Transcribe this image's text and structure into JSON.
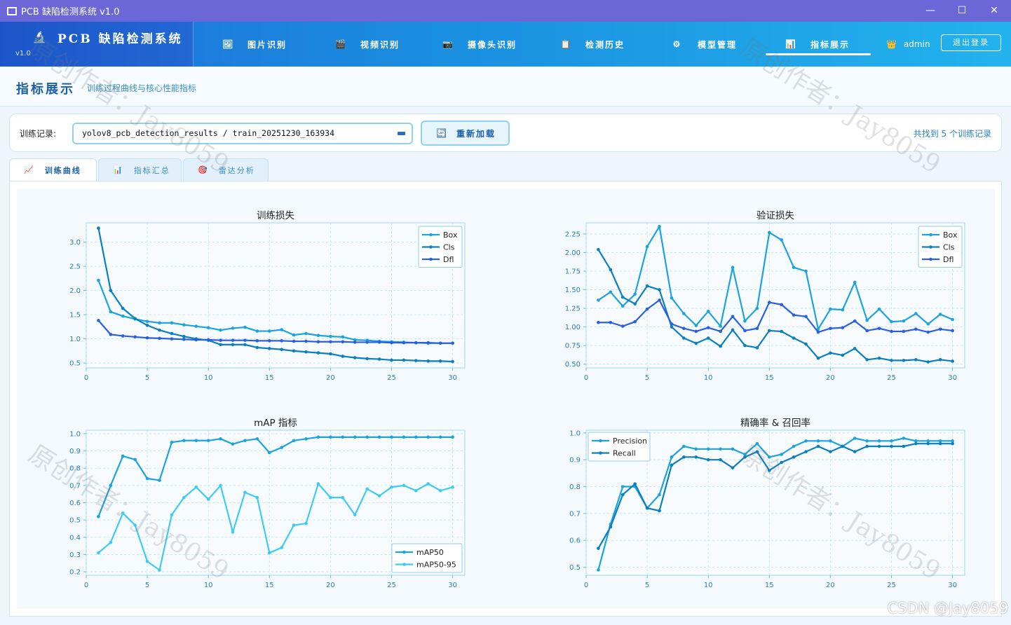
{
  "window": {
    "title": "PCB 缺陷检测系统 v1.0",
    "controls": [
      "—",
      "☐",
      "✕"
    ]
  },
  "brand": {
    "name": "PCB 缺陷检测系统",
    "version": "v1.0"
  },
  "nav": {
    "items": [
      {
        "label": "图片识别",
        "icon": "🖼"
      },
      {
        "label": "视频识别",
        "icon": "🎬"
      },
      {
        "label": "摄像头识别",
        "icon": "📷"
      },
      {
        "label": "检测历史",
        "icon": "📋"
      },
      {
        "label": "模型管理",
        "icon": "⚙"
      },
      {
        "label": "指标展示",
        "icon": "📊"
      }
    ],
    "active": "指标展示",
    "user": "admin",
    "user_icon": "👑",
    "logout": "退出登录"
  },
  "page": {
    "title": "指标展示",
    "subtitle": "训练过程曲线与核心性能指标"
  },
  "record": {
    "label": "训练记录:",
    "value": "yolov8_pcb_detection_results / train_20251230_163934",
    "reload_label": "重新加载",
    "reload_icon": "🔄",
    "count_text": "共找到 5 个训练记录"
  },
  "tabs": [
    {
      "label": "训练曲线",
      "icon": "📈"
    },
    {
      "label": "指标汇总",
      "icon": "📊"
    },
    {
      "label": "雷达分析",
      "icon": "🎯"
    }
  ],
  "watermark": {
    "text": "原创作者：Jay8059",
    "site": "CSDN @Jay8059"
  },
  "colors": {
    "c1": "#1ca3dd",
    "c2": "#0b7fbf",
    "c3": "#2b5fe3",
    "c4": "#3ecbf0"
  },
  "chart_data": [
    {
      "type": "line",
      "title": "训练损失",
      "x": [
        1,
        2,
        3,
        4,
        5,
        6,
        7,
        8,
        9,
        10,
        11,
        12,
        13,
        14,
        15,
        16,
        17,
        18,
        19,
        20,
        21,
        22,
        23,
        24,
        25,
        26,
        27,
        28,
        29,
        30
      ],
      "xticks": [
        0,
        5,
        10,
        15,
        20,
        25,
        30
      ],
      "xlim": [
        0,
        31
      ],
      "ylim": [
        0.4,
        3.4
      ],
      "yticks": [
        0.5,
        1.0,
        1.5,
        2.0,
        2.5,
        3.0
      ],
      "yticklabels": [
        "0.5",
        "1.0",
        "1.5",
        "2.0",
        "2.5",
        "3.0"
      ],
      "legend": "top-right",
      "grid": true,
      "series": [
        {
          "name": "Box",
          "values": [
            2.21,
            1.56,
            1.47,
            1.41,
            1.36,
            1.33,
            1.33,
            1.29,
            1.26,
            1.23,
            1.18,
            1.22,
            1.24,
            1.16,
            1.16,
            1.19,
            1.08,
            1.11,
            1.07,
            1.05,
            1.04,
            0.98,
            0.97,
            0.95,
            0.94,
            0.93,
            0.92,
            0.91,
            0.91,
            0.91
          ]
        },
        {
          "name": "Cls",
          "values": [
            3.29,
            2.0,
            1.63,
            1.42,
            1.28,
            1.18,
            1.11,
            1.05,
            1.0,
            0.97,
            0.88,
            0.88,
            0.88,
            0.82,
            0.8,
            0.78,
            0.75,
            0.73,
            0.71,
            0.69,
            0.64,
            0.61,
            0.59,
            0.58,
            0.56,
            0.56,
            0.55,
            0.54,
            0.54,
            0.53
          ]
        },
        {
          "name": "Dfl",
          "values": [
            1.38,
            1.09,
            1.06,
            1.04,
            1.02,
            1.01,
            1.0,
            0.99,
            0.98,
            0.98,
            0.97,
            0.97,
            0.97,
            0.96,
            0.96,
            0.96,
            0.95,
            0.95,
            0.94,
            0.94,
            0.94,
            0.93,
            0.93,
            0.93,
            0.92,
            0.92,
            0.92,
            0.92,
            0.91,
            0.91
          ]
        }
      ]
    },
    {
      "type": "line",
      "title": "验证损失",
      "x": [
        1,
        2,
        3,
        4,
        5,
        6,
        7,
        8,
        9,
        10,
        11,
        12,
        13,
        14,
        15,
        16,
        17,
        18,
        19,
        20,
        21,
        22,
        23,
        24,
        25,
        26,
        27,
        28,
        29,
        30
      ],
      "xticks": [
        0,
        5,
        10,
        15,
        20,
        25,
        30
      ],
      "xlim": [
        0,
        31
      ],
      "ylim": [
        0.45,
        2.4
      ],
      "yticks": [
        0.5,
        0.75,
        1.0,
        1.25,
        1.5,
        1.75,
        2.0,
        2.25
      ],
      "yticklabels": [
        "0.50",
        "0.75",
        "1.00",
        "1.25",
        "1.50",
        "1.75",
        "2.00",
        "2.25"
      ],
      "legend": "top-right",
      "grid": true,
      "series": [
        {
          "name": "Box",
          "values": [
            1.36,
            1.47,
            1.28,
            1.44,
            2.08,
            2.35,
            1.39,
            1.18,
            1.02,
            1.21,
            1.01,
            1.8,
            1.08,
            1.25,
            2.27,
            2.17,
            1.8,
            1.75,
            0.97,
            1.24,
            1.23,
            1.6,
            1.09,
            1.24,
            1.07,
            1.08,
            1.18,
            1.04,
            1.17,
            1.1
          ]
        },
        {
          "name": "Cls",
          "values": [
            2.04,
            1.77,
            1.4,
            1.31,
            1.55,
            1.5,
            1.0,
            0.85,
            0.78,
            0.85,
            0.74,
            0.96,
            0.75,
            0.72,
            0.95,
            0.94,
            0.85,
            0.77,
            0.58,
            0.65,
            0.62,
            0.71,
            0.56,
            0.58,
            0.55,
            0.55,
            0.56,
            0.53,
            0.56,
            0.54
          ]
        },
        {
          "name": "Dfl",
          "values": [
            1.06,
            1.06,
            1.01,
            1.07,
            1.24,
            1.36,
            1.04,
            0.98,
            0.94,
            0.99,
            0.94,
            1.14,
            0.95,
            0.98,
            1.33,
            1.3,
            1.16,
            1.14,
            0.93,
            0.98,
            0.99,
            1.08,
            0.95,
            0.98,
            0.94,
            0.94,
            0.97,
            0.93,
            0.97,
            0.95
          ]
        }
      ]
    },
    {
      "type": "line",
      "title": "mAP 指标",
      "x": [
        1,
        2,
        3,
        4,
        5,
        6,
        7,
        8,
        9,
        10,
        11,
        12,
        13,
        14,
        15,
        16,
        17,
        18,
        19,
        20,
        21,
        22,
        23,
        24,
        25,
        26,
        27,
        28,
        29,
        30
      ],
      "xticks": [
        0,
        5,
        10,
        15,
        20,
        25,
        30
      ],
      "xlim": [
        0,
        31
      ],
      "ylim": [
        0.18,
        1.02
      ],
      "yticks": [
        0.2,
        0.3,
        0.4,
        0.5,
        0.6,
        0.7,
        0.8,
        0.9,
        1.0
      ],
      "yticklabels": [
        "0.2",
        "0.3",
        "0.4",
        "0.5",
        "0.6",
        "0.7",
        "0.8",
        "0.9",
        "1.0"
      ],
      "legend": "bottom-right",
      "grid": true,
      "series": [
        {
          "name": "mAP50",
          "values": [
            0.52,
            0.7,
            0.87,
            0.85,
            0.74,
            0.73,
            0.95,
            0.96,
            0.96,
            0.96,
            0.97,
            0.94,
            0.96,
            0.97,
            0.89,
            0.92,
            0.96,
            0.97,
            0.98,
            0.98,
            0.98,
            0.98,
            0.98,
            0.98,
            0.98,
            0.98,
            0.98,
            0.98,
            0.98,
            0.98
          ]
        },
        {
          "name": "mAP50-95",
          "values": [
            0.31,
            0.37,
            0.54,
            0.47,
            0.26,
            0.21,
            0.53,
            0.63,
            0.69,
            0.62,
            0.7,
            0.43,
            0.66,
            0.63,
            0.31,
            0.34,
            0.47,
            0.48,
            0.71,
            0.63,
            0.63,
            0.53,
            0.68,
            0.64,
            0.69,
            0.7,
            0.67,
            0.71,
            0.67,
            0.69
          ]
        }
      ]
    },
    {
      "type": "line",
      "title": "精确率 & 召回率",
      "x": [
        1,
        2,
        3,
        4,
        5,
        6,
        7,
        8,
        9,
        10,
        11,
        12,
        13,
        14,
        15,
        16,
        17,
        18,
        19,
        20,
        21,
        22,
        23,
        24,
        25,
        26,
        27,
        28,
        29,
        30
      ],
      "xticks": [
        0,
        5,
        10,
        15,
        20,
        25,
        30
      ],
      "xlim": [
        0,
        31
      ],
      "ylim": [
        0.47,
        1.01
      ],
      "yticks": [
        0.5,
        0.6,
        0.7,
        0.8,
        0.9,
        1.0
      ],
      "yticklabels": [
        "0.5",
        "0.6",
        "0.7",
        "0.8",
        "0.9",
        "1.0"
      ],
      "legend": "top-left",
      "grid": true,
      "series": [
        {
          "name": "Precision",
          "values": [
            0.49,
            0.66,
            0.8,
            0.8,
            0.72,
            0.77,
            0.91,
            0.95,
            0.94,
            0.94,
            0.94,
            0.94,
            0.92,
            0.96,
            0.91,
            0.92,
            0.95,
            0.97,
            0.97,
            0.97,
            0.95,
            0.98,
            0.97,
            0.97,
            0.97,
            0.98,
            0.97,
            0.97,
            0.97,
            0.97
          ]
        },
        {
          "name": "Recall",
          "values": [
            0.57,
            0.65,
            0.77,
            0.81,
            0.72,
            0.71,
            0.88,
            0.91,
            0.91,
            0.9,
            0.9,
            0.87,
            0.91,
            0.93,
            0.86,
            0.89,
            0.91,
            0.93,
            0.95,
            0.93,
            0.95,
            0.93,
            0.95,
            0.95,
            0.95,
            0.95,
            0.96,
            0.96,
            0.96,
            0.96
          ]
        }
      ]
    }
  ]
}
